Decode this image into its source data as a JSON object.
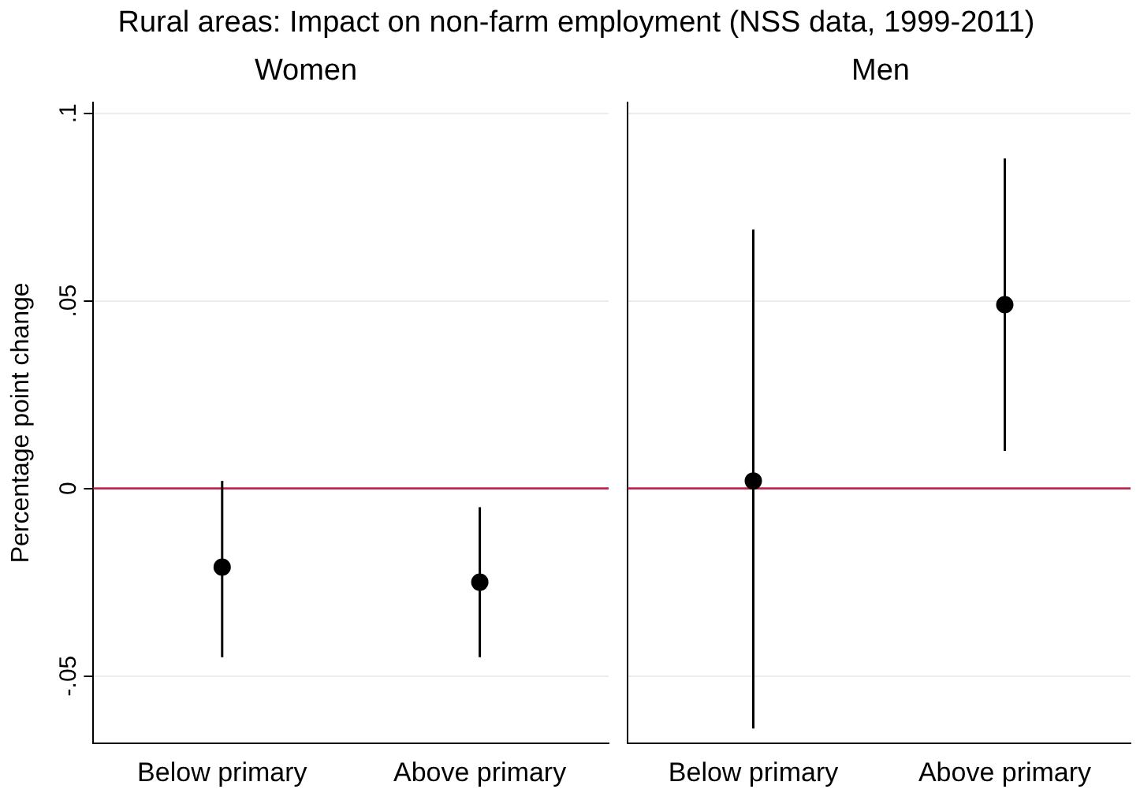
{
  "chart_data": [
    {
      "type": "scatter",
      "title": "Women",
      "ylabel": "Percentage point change",
      "annotations": [
        "Rural areas: Impact on non-farm employment (NSS data, 1999-2011)"
      ],
      "categories": [
        "Below primary",
        "Above primary"
      ],
      "values": [
        -0.021,
        -0.025
      ],
      "errors": [
        [
          -0.045,
          0.002
        ],
        [
          -0.045,
          -0.005
        ]
      ],
      "color": "#000000",
      "ylim": [
        -0.068,
        0.103
      ],
      "yticks": [
        {
          "value": -0.05,
          "label": "-.05"
        },
        0,
        {
          "value": 0.05,
          "label": ".05"
        },
        {
          "value": 0.1,
          "label": ".1"
        }
      ],
      "grid": "y",
      "marker": "circle",
      "ref_lines": [
        {
          "axis": "y",
          "value": 0,
          "color": "#c0264a"
        }
      ]
    },
    {
      "type": "scatter",
      "title": "Men",
      "categories": [
        "Below primary",
        "Above primary"
      ],
      "values": [
        0.002,
        0.049
      ],
      "errors": [
        [
          -0.064,
          0.069
        ],
        [
          0.01,
          0.088
        ]
      ],
      "color": "#000000",
      "ylim": [
        -0.068,
        0.103
      ],
      "yticks": [
        -0.05,
        0,
        0.05,
        0.1
      ],
      "grid": "y",
      "marker": "circle",
      "tick_labels": "x",
      "ref_lines": [
        {
          "axis": "y",
          "value": 0,
          "color": "#c0264a"
        }
      ]
    }
  ]
}
